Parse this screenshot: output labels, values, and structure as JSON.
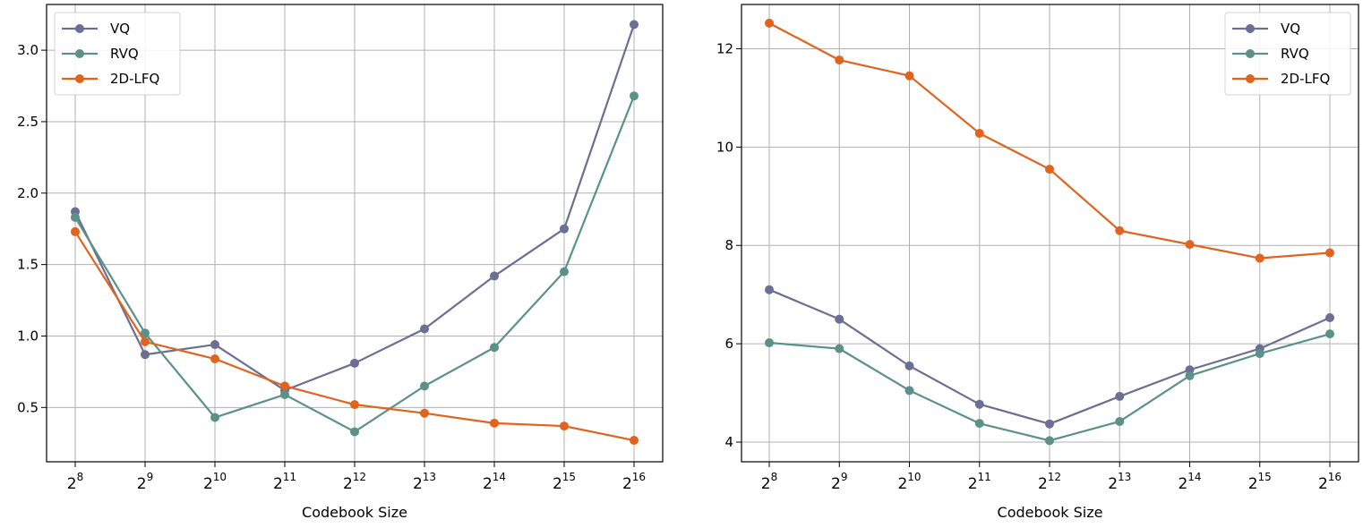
{
  "chart_data": [
    {
      "type": "line",
      "title": "",
      "xlabel": "Codebook Size",
      "ylabel": "",
      "x_exponents": [
        8,
        9,
        10,
        11,
        12,
        13,
        14,
        15,
        16
      ],
      "x_base": "2",
      "ylim": [
        0.12,
        3.32
      ],
      "yticks": [
        0.5,
        1.0,
        1.5,
        2.0,
        2.5,
        3.0
      ],
      "ytick_labels": [
        "0.5",
        "1.0",
        "1.5",
        "2.0",
        "2.5",
        "3.0"
      ],
      "grid": true,
      "legend": "top-left",
      "series": [
        {
          "name": "VQ",
          "color": "#6a6f93",
          "values": [
            1.87,
            0.87,
            0.94,
            0.62,
            0.81,
            1.05,
            1.42,
            1.75,
            3.18
          ]
        },
        {
          "name": "RVQ",
          "color": "#5b9189",
          "values": [
            1.83,
            1.02,
            0.43,
            0.59,
            0.33,
            0.65,
            0.92,
            1.45,
            2.68
          ]
        },
        {
          "name": "2D-LFQ",
          "color": "#e0631e",
          "values": [
            1.73,
            0.96,
            0.84,
            0.65,
            0.52,
            0.46,
            0.39,
            0.37,
            0.27
          ]
        }
      ]
    },
    {
      "type": "line",
      "title": "",
      "xlabel": "Codebook Size",
      "ylabel": "",
      "x_exponents": [
        8,
        9,
        10,
        11,
        12,
        13,
        14,
        15,
        16
      ],
      "x_base": "2",
      "ylim": [
        3.6,
        12.9
      ],
      "yticks": [
        4,
        6,
        8,
        10,
        12
      ],
      "ytick_labels": [
        "4",
        "6",
        "8",
        "10",
        "12"
      ],
      "grid": true,
      "legend": "top-right",
      "series": [
        {
          "name": "VQ",
          "color": "#6a6f93",
          "values": [
            7.1,
            6.5,
            5.55,
            4.77,
            4.37,
            4.93,
            5.47,
            5.9,
            6.53
          ]
        },
        {
          "name": "RVQ",
          "color": "#5b9189",
          "values": [
            6.02,
            5.9,
            5.05,
            4.38,
            4.03,
            4.42,
            5.35,
            5.8,
            6.2
          ]
        },
        {
          "name": "2D-LFQ",
          "color": "#e0631e",
          "values": [
            12.52,
            11.77,
            11.45,
            10.28,
            9.55,
            8.3,
            8.02,
            7.74,
            7.85
          ]
        }
      ]
    }
  ]
}
